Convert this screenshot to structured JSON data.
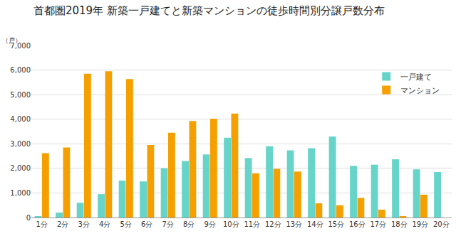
{
  "chart_data": {
    "type": "bar",
    "title": "首都圏2019年 新築一戸建てと新築マンションの徒歩時間別分譲戸数分布",
    "ylabel": "（戸）",
    "categories": [
      "1分",
      "2分",
      "3分",
      "4分",
      "5分",
      "6分",
      "7分",
      "8分",
      "9分",
      "10分",
      "11分",
      "12分",
      "13分",
      "14分",
      "15分",
      "16分",
      "17分",
      "18分",
      "19分",
      "20分"
    ],
    "series": [
      {
        "name": "一戸建て",
        "color": "#66d4c8",
        "values": [
          50,
          200,
          600,
          950,
          1500,
          1470,
          2000,
          2300,
          2570,
          3250,
          2420,
          2900,
          2730,
          2820,
          3300,
          2100,
          2150,
          2370,
          1960,
          1850
        ]
      },
      {
        "name": "マンション",
        "color": "#f5a000",
        "values": [
          2620,
          2850,
          5850,
          5950,
          5630,
          2950,
          3450,
          3930,
          4020,
          4230,
          1800,
          1980,
          1870,
          580,
          500,
          800,
          320,
          60,
          930,
          0
        ]
      }
    ],
    "ylim": [
      0,
      7000
    ],
    "yticks": [
      0,
      {
        "value": 1000,
        "label": "1,000"
      },
      {
        "value": 2000,
        "label": "2,000"
      },
      {
        "value": 3000,
        "label": "3,000"
      },
      {
        "value": 4000,
        "label": "4,000"
      },
      {
        "value": 5000,
        "label": "5,000"
      },
      {
        "value": 6000,
        "label": "6,000"
      },
      {
        "value": 7000,
        "label": "7,000"
      }
    ],
    "grid": true,
    "legend": "upper right"
  }
}
